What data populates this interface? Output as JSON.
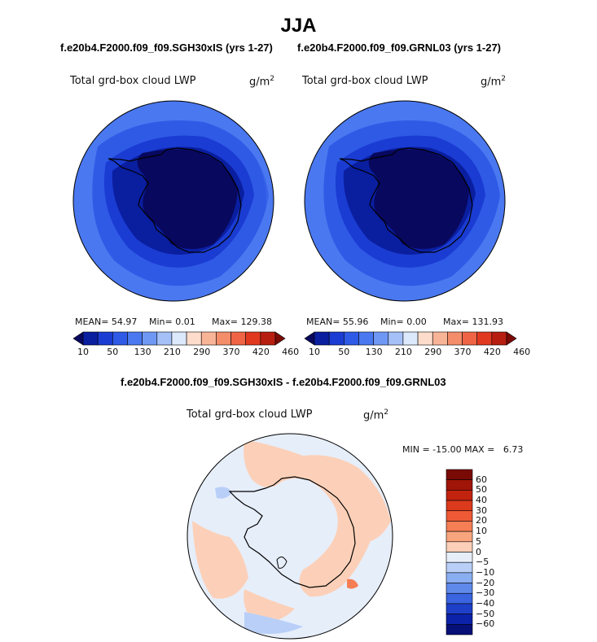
{
  "page": {
    "title": "JJA"
  },
  "panels": [
    {
      "case": "f.e20b4.F2000.f09_f09.SGH30xIS (yrs 1-27)",
      "variable": "Total grd-box cloud LWP",
      "units": "g/m",
      "units_exp": "2",
      "mean_label": "MEAN=",
      "mean": "54.97",
      "min_label": "Min=",
      "min": "0.01",
      "max_label": "Max=",
      "max": "129.38"
    },
    {
      "case": "f.e20b4.F2000.f09_f09.GRNL03 (yrs 1-27)",
      "variable": "Total grd-box cloud LWP",
      "units": "g/m",
      "units_exp": "2",
      "mean_label": "MEAN=",
      "mean": "55.96",
      "min_label": "Min=",
      "min": "0.00",
      "max_label": "Max=",
      "max": "131.93"
    }
  ],
  "diff": {
    "title": "f.e20b4.F2000.f09_f09.SGH30xIS - f.e20b4.F2000.f09_f09.GRNL03",
    "variable": "Total grd-box cloud LWP",
    "units": "g/m",
    "units_exp": "2",
    "minmax": "MIN = -15.00 MAX =   6.73"
  },
  "chart_data": [
    {
      "type": "heatmap",
      "projection": "south-polar stereographic",
      "title": "Total grd-box cloud LWP",
      "units": "g/m^2",
      "stats": {
        "mean": 54.97,
        "min": 0.01,
        "max": 129.38
      },
      "colorbar": {
        "orientation": "horizontal",
        "tick_labels": [
          "10",
          "50",
          "130",
          "210",
          "290",
          "370",
          "420",
          "460"
        ],
        "colors": [
          "#08085e",
          "#0a1ea0",
          "#1a3cd2",
          "#2f5ae6",
          "#4a78f0",
          "#6f98f4",
          "#a4c0f7",
          "#dce8fb",
          "#fddccb",
          "#f8b496",
          "#f48d6a",
          "#ef6445",
          "#e0391f",
          "#b81e10",
          "#7a0a05"
        ]
      }
    },
    {
      "type": "heatmap",
      "projection": "south-polar stereographic",
      "title": "Total grd-box cloud LWP",
      "units": "g/m^2",
      "stats": {
        "mean": 55.96,
        "min": 0.0,
        "max": 131.93
      },
      "colorbar": {
        "orientation": "horizontal",
        "tick_labels": [
          "10",
          "50",
          "130",
          "210",
          "290",
          "370",
          "420",
          "460"
        ],
        "colors": [
          "#08085e",
          "#0a1ea0",
          "#1a3cd2",
          "#2f5ae6",
          "#4a78f0",
          "#6f98f4",
          "#a4c0f7",
          "#dce8fb",
          "#fddccb",
          "#f8b496",
          "#f48d6a",
          "#ef6445",
          "#e0391f",
          "#b81e10",
          "#7a0a05"
        ]
      }
    },
    {
      "type": "heatmap",
      "projection": "south-polar stereographic",
      "title": "Total grd-box cloud LWP",
      "units": "g/m^2",
      "stats": {
        "min": -15.0,
        "max": 6.73
      },
      "colorbar": {
        "orientation": "vertical",
        "tick_labels": [
          "60",
          "50",
          "40",
          "30",
          "20",
          "10",
          "5",
          "0",
          "−5",
          "−10",
          "−20",
          "−30",
          "−40",
          "−50",
          "−60"
        ],
        "colors": [
          "#7a0a05",
          "#a01508",
          "#c2230f",
          "#dc3a1c",
          "#ee5a35",
          "#f57e55",
          "#f8a57e",
          "#fcd0b8",
          "#e6eefa",
          "#b9cff8",
          "#8aaef2",
          "#5f8aea",
          "#3a64e0",
          "#1e40c8",
          "#0c22a8",
          "#070f78"
        ]
      }
    }
  ]
}
